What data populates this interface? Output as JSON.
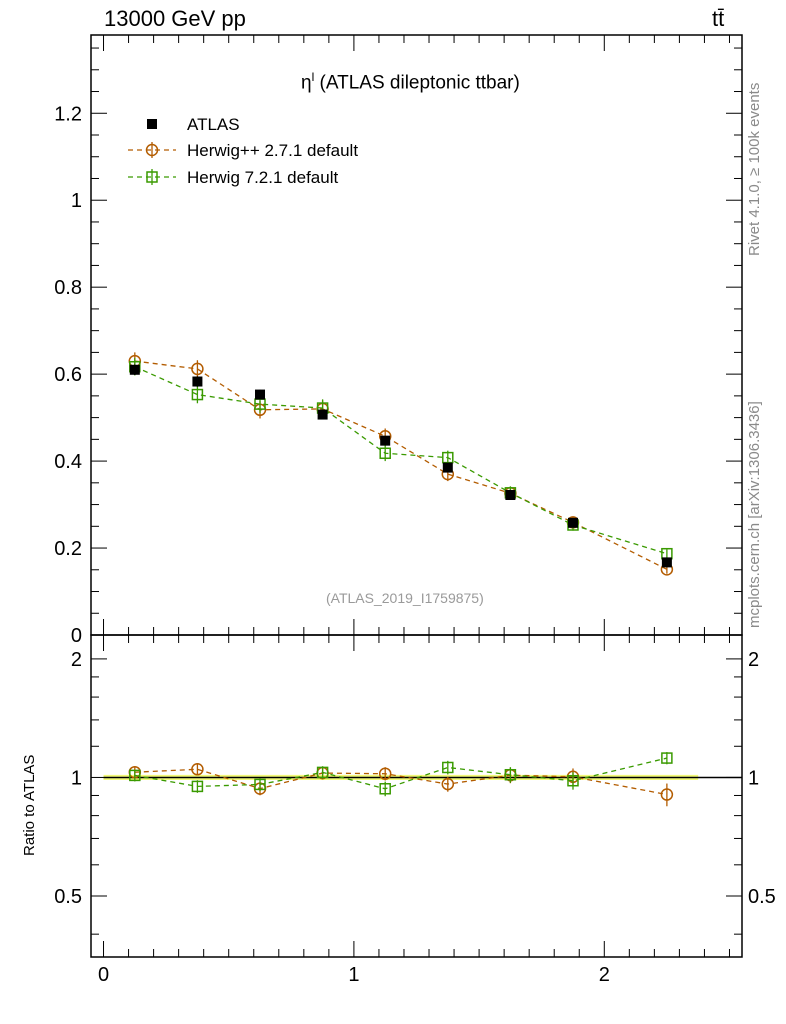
{
  "header": {
    "energy_label": "13000 GeV pp",
    "process_label": "tt̄"
  },
  "side_labels": {
    "rivet": "Rivet 4.1.0, ≥ 100k events",
    "mcplots": "mcplots.cern.ch [arXiv:1306.3436]"
  },
  "plot_title": {
    "symbol": "η",
    "superscript": "l",
    "text": " (ATLAS dileptonic ttbar)"
  },
  "analysis_id": "(ATLAS_2019_I1759875)",
  "ratio_ylabel": "Ratio to ATLAS",
  "colors": {
    "data": "#000000",
    "herwigpp": "#b35c00",
    "herwig7": "#3a9a00",
    "band": "#f3fa7a"
  },
  "chart_data": {
    "type": "scatter",
    "xlim": [
      -0.05,
      2.55
    ],
    "main": {
      "ylim": [
        0,
        1.38
      ],
      "yticks": [
        0,
        0.2,
        0.4,
        0.6,
        0.8,
        1,
        1.2
      ],
      "yticklabels": [
        "0",
        "0.2",
        "0.4",
        "0.6",
        "0.8",
        "1",
        "1.2"
      ]
    },
    "ratio": {
      "ylim": [
        0.35,
        2.3
      ],
      "yticks": [
        0.5,
        1,
        2
      ],
      "yticklabels": [
        "0.5",
        "1",
        "2"
      ]
    },
    "xticks": [
      0,
      1,
      2
    ],
    "xticklabels": [
      "0",
      "1",
      "2"
    ],
    "x": [
      0.125,
      0.375,
      0.625,
      0.875,
      1.125,
      1.375,
      1.625,
      1.875,
      2.25
    ],
    "series": [
      {
        "name": "ATLAS",
        "marker": "square-filled",
        "line": "none",
        "values": [
          0.61,
          0.583,
          0.553,
          0.507,
          0.447,
          0.385,
          0.322,
          0.258,
          0.167
        ],
        "errors": [
          0.012,
          0.012,
          0.011,
          0.01,
          0.009,
          0.008,
          0.007,
          0.006,
          0.006
        ],
        "ratio": [
          1,
          1,
          1,
          1,
          1,
          1,
          1,
          1,
          1
        ],
        "ratio_errors": [
          0.03,
          0.03,
          0.03,
          0.03,
          0.03,
          0.03,
          0.03,
          0.03,
          0.03
        ]
      },
      {
        "name": "Herwig++ 2.7.1 default",
        "marker": "circle-open",
        "line": "dashed",
        "values": [
          0.63,
          0.612,
          0.518,
          0.52,
          0.457,
          0.37,
          0.326,
          0.259,
          0.151
        ],
        "errors": [
          0.02,
          0.02,
          0.02,
          0.02,
          0.018,
          0.016,
          0.015,
          0.013,
          0.01
        ],
        "ratio": [
          1.031,
          1.049,
          0.937,
          1.026,
          1.022,
          0.962,
          1.013,
          1.004,
          0.905
        ],
        "ratio_errors": [
          0.035,
          0.035,
          0.036,
          0.038,
          0.04,
          0.042,
          0.046,
          0.05,
          0.06
        ]
      },
      {
        "name": "Herwig 7.2.1 default",
        "marker": "square-open",
        "line": "dashed",
        "values": [
          0.617,
          0.553,
          0.531,
          0.522,
          0.418,
          0.408,
          0.327,
          0.253,
          0.187
        ],
        "errors": [
          0.02,
          0.02,
          0.02,
          0.02,
          0.018,
          0.016,
          0.015,
          0.013,
          0.01
        ],
        "ratio": [
          1.012,
          0.949,
          0.96,
          1.03,
          0.936,
          1.06,
          1.016,
          0.981,
          1.12
        ],
        "ratio_errors": [
          0.035,
          0.035,
          0.036,
          0.038,
          0.04,
          0.042,
          0.046,
          0.05,
          0.04
        ]
      }
    ]
  }
}
